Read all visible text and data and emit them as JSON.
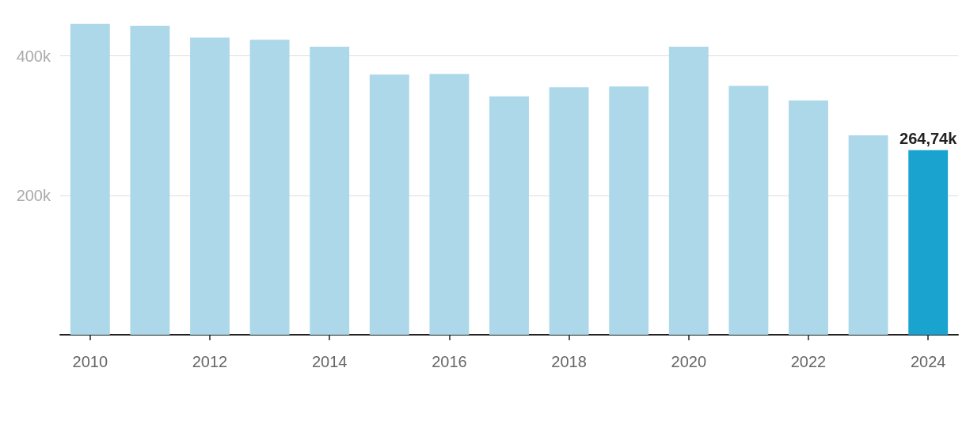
{
  "chart_data": {
    "type": "bar",
    "categories": [
      "2010",
      null,
      "2012",
      null,
      "2014",
      null,
      "2016",
      null,
      "2018",
      null,
      "2020",
      null,
      "2022",
      null,
      "2024"
    ],
    "values": [
      446000,
      443000,
      426000,
      423000,
      413000,
      373000,
      374000,
      342000,
      355000,
      356000,
      413000,
      357000,
      336000,
      286000,
      264740
    ],
    "colors": [
      "#add8ea",
      "#add8ea",
      "#add8ea",
      "#add8ea",
      "#add8ea",
      "#add8ea",
      "#add8ea",
      "#add8ea",
      "#add8ea",
      "#add8ea",
      "#add8ea",
      "#add8ea",
      "#add8ea",
      "#add8ea",
      "#1ba3d0"
    ],
    "value_labels": [
      null,
      null,
      null,
      null,
      null,
      null,
      null,
      null,
      null,
      null,
      null,
      null,
      null,
      null,
      "264,74k"
    ],
    "yticks": [
      {
        "value": 200000,
        "label": "200k"
      },
      {
        "value": 400000,
        "label": "400k"
      }
    ],
    "ylim": [
      0,
      446000
    ],
    "grid": "y"
  }
}
